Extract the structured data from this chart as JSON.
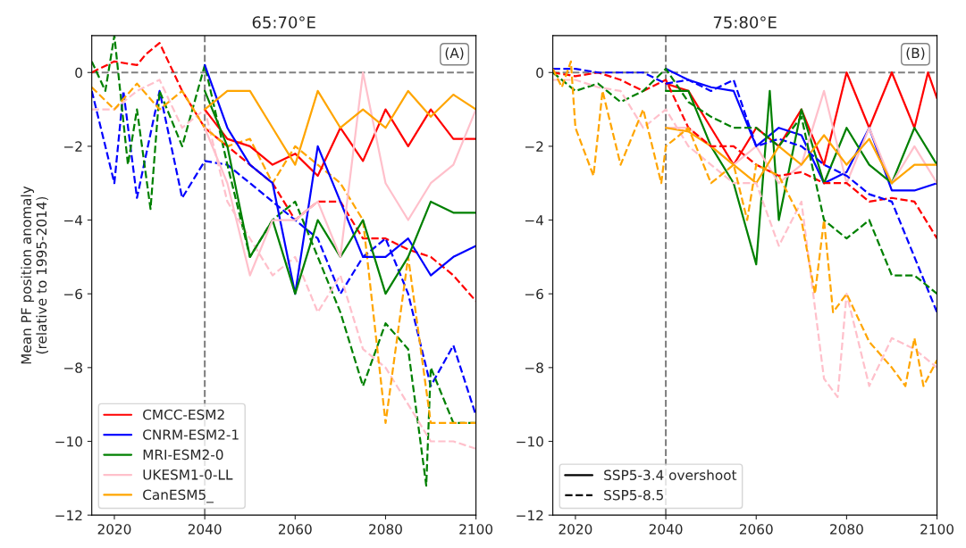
{
  "chart_data": [
    {
      "type": "line",
      "title": "65:70°E",
      "ylabel": "Mean PF position anomaly\n(relative to 1995-2014)",
      "annotations": [
        "(A)"
      ],
      "legend": "bottom left",
      "grid": false,
      "xlim": [
        2015,
        2100
      ],
      "xticks": [
        2020,
        2040,
        2060,
        2080,
        2100
      ],
      "ylim": [
        -12,
        1
      ],
      "yticks": [
        {
          "value": -12,
          "label": "−12"
        },
        {
          "value": -10,
          "label": "−10"
        },
        {
          "value": -8,
          "label": "−8"
        },
        {
          "value": -6,
          "label": "−6"
        },
        {
          "value": -4,
          "label": "−4"
        },
        {
          "value": -2,
          "label": "−2"
        },
        0
      ],
      "ref_lines": [
        {
          "axis": "y",
          "value": 0,
          "color": "#808080",
          "line_style": "dashed"
        },
        {
          "axis": "x",
          "value": 2040,
          "color": "#808080",
          "line_style": "dashed"
        }
      ],
      "series": [
        {
          "color": "#ff0000",
          "line_style": "dashed",
          "x": [
            2015,
            2020,
            2025,
            2027,
            2030,
            2035,
            2040,
            2045,
            2050,
            2055,
            2060,
            2065,
            2070,
            2075,
            2080,
            2085,
            2090,
            2095,
            2100
          ],
          "values": [
            0,
            0.3,
            0.2,
            0.5,
            0.8,
            -0.5,
            -1.5,
            -2,
            -2.5,
            -3,
            -4,
            -3.5,
            -3.5,
            -4.5,
            -4.5,
            -4.8,
            -5,
            -5.5,
            -6.2
          ]
        },
        {
          "color": "#0000ff",
          "line_style": "dashed",
          "x": [
            2015,
            2020,
            2022,
            2025,
            2030,
            2035,
            2040,
            2045,
            2050,
            2055,
            2060,
            2065,
            2070,
            2075,
            2080,
            2085,
            2090,
            2095,
            2100
          ],
          "values": [
            -0.5,
            -3,
            -0.5,
            -3.4,
            -0.5,
            -3.4,
            -2.4,
            -2.5,
            -3,
            -3.5,
            -4,
            -4.5,
            -6,
            -5,
            -4.5,
            -6,
            -8.5,
            -7.4,
            -9.3
          ]
        },
        {
          "color": "#008000",
          "line_style": "dashed",
          "x": [
            2015,
            2018,
            2020,
            2023,
            2025,
            2028,
            2030,
            2035,
            2040,
            2045,
            2050,
            2055,
            2060,
            2065,
            2070,
            2075,
            2080,
            2085,
            2089,
            2090,
            2095,
            2100
          ],
          "values": [
            0.3,
            -0.5,
            1,
            -2.5,
            -1,
            -3.7,
            -0.5,
            -2,
            0.2,
            -2.5,
            -5,
            -4,
            -3.5,
            -5,
            -6.5,
            -8.5,
            -6.8,
            -7.5,
            -11.2,
            -8,
            -9.5,
            -9.5
          ]
        },
        {
          "color": "#ffc0cb",
          "line_style": "dashed",
          "x": [
            2015,
            2020,
            2025,
            2030,
            2035,
            2040,
            2045,
            2050,
            2055,
            2060,
            2065,
            2070,
            2075,
            2080,
            2085,
            2090,
            2095,
            2100
          ],
          "values": [
            -1,
            -1,
            -0.5,
            -0.2,
            -1.5,
            -1,
            -3.5,
            -4.5,
            -5.5,
            -5,
            -6.5,
            -5.5,
            -7.5,
            -8,
            -9,
            -10,
            -10,
            -10.2
          ]
        },
        {
          "color": "#ffa500",
          "line_style": "dashed",
          "x": [
            2015,
            2020,
            2025,
            2030,
            2035,
            2040,
            2045,
            2050,
            2055,
            2060,
            2065,
            2070,
            2075,
            2080,
            2085,
            2090,
            2095,
            2100
          ],
          "values": [
            -0.4,
            -1,
            -0.3,
            -1,
            -0.5,
            -1.5,
            -2,
            -1.8,
            -3,
            -2,
            -2.5,
            -3,
            -4,
            -9.5,
            -5,
            -9.5,
            -9.5,
            -9.5
          ]
        },
        {
          "name": "CMCC-ESM2",
          "color": "#ff0000",
          "line_style": "solid",
          "x": [
            2040,
            2045,
            2050,
            2055,
            2060,
            2065,
            2070,
            2075,
            2080,
            2085,
            2090,
            2095,
            2100
          ],
          "values": [
            -1,
            -1.8,
            -2,
            -2.5,
            -2.2,
            -2.8,
            -1.5,
            -2.4,
            -1,
            -2,
            -1,
            -1.8,
            -1.8
          ]
        },
        {
          "name": "CNRM-ESM2-1",
          "color": "#0000ff",
          "line_style": "solid",
          "x": [
            2040,
            2045,
            2050,
            2055,
            2060,
            2065,
            2070,
            2075,
            2080,
            2085,
            2090,
            2095,
            2100
          ],
          "values": [
            0.2,
            -1.5,
            -2.5,
            -3,
            -6,
            -2,
            -3.5,
            -5,
            -5,
            -4.5,
            -5.5,
            -5,
            -4.7
          ]
        },
        {
          "name": "MRI-ESM2-0",
          "color": "#008000",
          "line_style": "solid",
          "x": [
            2040,
            2045,
            2050,
            2055,
            2060,
            2065,
            2070,
            2075,
            2080,
            2085,
            2090,
            2095,
            2100
          ],
          "values": [
            -0.5,
            -2,
            -5,
            -4,
            -6,
            -4,
            -5,
            -4,
            -6,
            -5,
            -3.5,
            -3.8,
            -3.8
          ]
        },
        {
          "name": "UKESM1-0-LL",
          "color": "#ffc0cb",
          "line_style": "solid",
          "x": [
            2040,
            2045,
            2050,
            2055,
            2060,
            2065,
            2070,
            2075,
            2080,
            2085,
            2090,
            2095,
            2100
          ],
          "values": [
            -1.5,
            -3,
            -5.5,
            -4,
            -4,
            -3.5,
            -5,
            0,
            -3,
            -4,
            -3,
            -2.5,
            -1
          ]
        },
        {
          "name": "CanESM5_",
          "color": "#ffa500",
          "line_style": "solid",
          "x": [
            2040,
            2045,
            2050,
            2055,
            2060,
            2065,
            2070,
            2075,
            2080,
            2085,
            2090,
            2095,
            2100
          ],
          "values": [
            -1,
            -0.5,
            -0.5,
            -1.5,
            -2.5,
            -0.5,
            -1.5,
            -1,
            -1.5,
            -0.5,
            -1.2,
            -0.6,
            -1
          ]
        }
      ]
    },
    {
      "type": "line",
      "title": "75:80°E",
      "annotations": [
        "(B)",
        "SSP5-3.4 overshoot",
        "SSP5-8.5"
      ],
      "legend": "bottom left",
      "grid": false,
      "xlim": [
        2015,
        2100
      ],
      "xticks": [
        2020,
        2040,
        2060,
        2080,
        2100
      ],
      "ylim": [
        -12,
        1
      ],
      "yticks": [
        {
          "value": -12,
          "label": "−12"
        },
        {
          "value": -10,
          "label": "−10"
        },
        {
          "value": -8,
          "label": "−8"
        },
        {
          "value": -6,
          "label": "−6"
        },
        {
          "value": -4,
          "label": "−4"
        },
        {
          "value": -2,
          "label": "−2"
        },
        0
      ],
      "ref_lines": [
        {
          "axis": "y",
          "value": 0,
          "color": "#808080",
          "line_style": "dashed"
        },
        {
          "axis": "x",
          "value": 2040,
          "color": "#808080",
          "line_style": "dashed"
        }
      ],
      "series": [
        {
          "color": "#ff0000",
          "line_style": "solid",
          "x": [
            2040,
            2045,
            2050,
            2055,
            2060,
            2065,
            2070,
            2075,
            2080,
            2085,
            2090,
            2095,
            2098,
            2100
          ],
          "values": [
            -0.3,
            -0.5,
            -1.5,
            -2.5,
            -1.5,
            -2,
            -1,
            -2.5,
            0,
            -1.5,
            0,
            -1.5,
            0,
            -0.7
          ]
        },
        {
          "color": "#0000ff",
          "line_style": "solid",
          "x": [
            2040,
            2045,
            2050,
            2055,
            2060,
            2065,
            2070,
            2075,
            2080,
            2085,
            2090,
            2095,
            2100
          ],
          "values": [
            0.1,
            -0.2,
            -0.4,
            -0.5,
            -2,
            -1.5,
            -1.7,
            -3,
            -2.7,
            -1.5,
            -3.2,
            -3.2,
            -3
          ]
        },
        {
          "color": "#008000",
          "line_style": "solid",
          "x": [
            2040,
            2045,
            2050,
            2055,
            2060,
            2063,
            2065,
            2070,
            2075,
            2080,
            2085,
            2090,
            2095,
            2100
          ],
          "values": [
            -0.5,
            -0.5,
            -2,
            -3,
            -5.2,
            -0.5,
            -4,
            -1,
            -3,
            -1.5,
            -2.5,
            -3,
            -1.5,
            -2.5
          ]
        },
        {
          "color": "#ffc0cb",
          "line_style": "solid",
          "x": [
            2040,
            2045,
            2050,
            2055,
            2060,
            2065,
            2070,
            2075,
            2080,
            2085,
            2090,
            2095,
            2100
          ],
          "values": [
            -1.5,
            -1.5,
            -2,
            -2.5,
            -2,
            -3,
            -2.5,
            -0.5,
            -3,
            -1.5,
            -3,
            -2,
            -3
          ]
        },
        {
          "color": "#ffa500",
          "line_style": "solid",
          "x": [
            2040,
            2045,
            2050,
            2055,
            2060,
            2065,
            2070,
            2075,
            2080,
            2085,
            2090,
            2095,
            2100
          ],
          "values": [
            -1.5,
            -1.6,
            -2,
            -2.5,
            -3,
            -2,
            -2.5,
            -1.7,
            -2.5,
            -1.8,
            -3,
            -2.5,
            -2.5
          ]
        },
        {
          "color": "#ff0000",
          "line_style": "dashed",
          "x": [
            2015,
            2020,
            2025,
            2030,
            2035,
            2040,
            2045,
            2050,
            2055,
            2060,
            2065,
            2070,
            2075,
            2080,
            2085,
            2090,
            2095,
            2100
          ],
          "values": [
            0,
            -0.1,
            0,
            -0.2,
            -0.5,
            -0.2,
            -1.5,
            -2,
            -2,
            -2.5,
            -2.8,
            -2.7,
            -3,
            -3,
            -3.5,
            -3.4,
            -3.5,
            -4.5
          ]
        },
        {
          "color": "#0000ff",
          "line_style": "dashed",
          "x": [
            2015,
            2020,
            2025,
            2030,
            2035,
            2040,
            2045,
            2050,
            2055,
            2060,
            2065,
            2070,
            2075,
            2080,
            2085,
            2090,
            2095,
            2100
          ],
          "values": [
            0.1,
            0.1,
            0,
            0,
            0,
            -0.3,
            -0.2,
            -0.5,
            -0.2,
            -2,
            -1.8,
            -2,
            -2.5,
            -2.8,
            -3.3,
            -3.5,
            -5,
            -6.5
          ]
        },
        {
          "color": "#008000",
          "line_style": "dashed",
          "x": [
            2015,
            2020,
            2025,
            2030,
            2035,
            2040,
            2045,
            2050,
            2055,
            2060,
            2065,
            2070,
            2075,
            2080,
            2085,
            2090,
            2095,
            2100
          ],
          "values": [
            0,
            -0.5,
            -0.3,
            -0.8,
            -0.5,
            0.1,
            -0.8,
            -1.2,
            -1.5,
            -1.5,
            -2,
            -1.2,
            -4,
            -4.5,
            -4,
            -5.5,
            -5.5,
            -6
          ]
        },
        {
          "color": "#ffc0cb",
          "line_style": "dashed",
          "x": [
            2015,
            2020,
            2025,
            2030,
            2035,
            2040,
            2045,
            2050,
            2055,
            2060,
            2065,
            2070,
            2075,
            2078,
            2080,
            2085,
            2090,
            2095,
            2100
          ],
          "values": [
            -0.2,
            -0.2,
            -0.4,
            -0.5,
            -1.5,
            -1,
            -2,
            -2.5,
            -3,
            -3,
            -4.7,
            -3.5,
            -8.3,
            -8.8,
            -6,
            -8.5,
            -7.2,
            -7.5,
            -8
          ]
        },
        {
          "color": "#ffa500",
          "line_style": "dashed",
          "x": [
            2015,
            2017,
            2019,
            2020,
            2024,
            2026,
            2030,
            2035,
            2039,
            2040,
            2045,
            2050,
            2055,
            2058,
            2060,
            2065,
            2070,
            2073,
            2075,
            2077,
            2080,
            2085,
            2090,
            2093,
            2095,
            2097,
            2100
          ],
          "values": [
            0.1,
            -0.4,
            0.3,
            -1.5,
            -2.8,
            -0.5,
            -2.5,
            -1,
            -3,
            -2,
            -1.5,
            -3,
            -2.5,
            -4,
            -2.5,
            -2.8,
            -4,
            -6,
            -4,
            -6.5,
            -6,
            -7.3,
            -8,
            -8.5,
            -7.2,
            -8.5,
            -7.8
          ]
        }
      ]
    }
  ]
}
